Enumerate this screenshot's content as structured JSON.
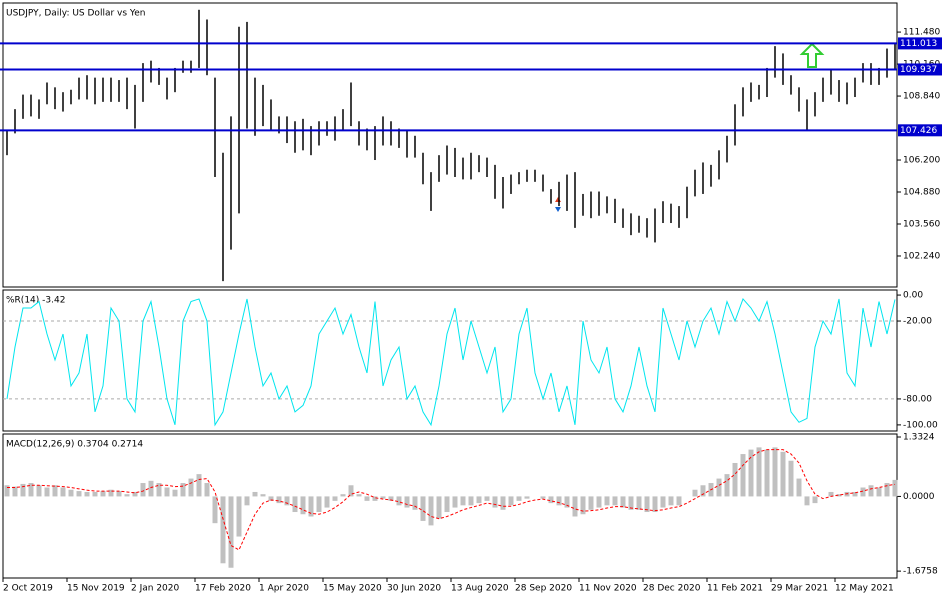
{
  "chart_data": [
    {
      "type": "range_bar",
      "title": "USDJPY, Daily:  US Dollar vs Yen",
      "color": "#000000",
      "high": [
        107.4,
        108.3,
        108.9,
        108.9,
        108.7,
        109.4,
        109.2,
        109.0,
        109.1,
        109.6,
        109.7,
        109.6,
        109.6,
        109.6,
        109.5,
        109.6,
        109.3,
        110.2,
        110.3,
        110.0,
        109.6,
        110.0,
        110.3,
        110.3,
        112.4,
        112.0,
        109.6,
        106.5,
        108.0,
        111.7,
        111.9,
        109.6,
        109.3,
        108.7,
        108.0,
        108.0,
        107.8,
        107.9,
        107.6,
        107.8,
        107.8,
        108.0,
        108.3,
        109.4,
        107.8,
        107.5,
        107.6,
        108.0,
        107.8,
        107.5,
        107.4,
        107.2,
        106.5,
        105.7,
        106.4,
        106.8,
        106.7,
        106.3,
        106.5,
        106.4,
        106.3,
        106.0,
        105.5,
        105.6,
        105.7,
        105.8,
        105.8,
        105.6,
        105.0,
        105.3,
        105.6,
        105.7,
        104.8,
        104.9,
        104.9,
        104.7,
        104.6,
        104.2,
        104.0,
        103.9,
        103.8,
        104.2,
        104.5,
        104.4,
        104.3,
        105.1,
        105.8,
        106.1,
        106.0,
        106.6,
        107.2,
        108.5,
        109.2,
        109.4,
        109.3,
        110.0,
        110.9,
        110.6,
        109.7,
        109.2,
        108.7,
        109.0,
        109.6,
        109.9,
        109.5,
        109.4,
        109.6,
        110.2,
        110.2,
        110.0,
        110.8,
        111.0
      ],
      "low": [
        106.4,
        107.3,
        107.9,
        108.0,
        107.9,
        108.5,
        108.3,
        108.2,
        108.5,
        108.7,
        108.7,
        108.5,
        108.6,
        108.6,
        108.6,
        108.3,
        107.5,
        108.6,
        109.4,
        109.3,
        108.7,
        109.0,
        109.8,
        109.8,
        110.0,
        109.7,
        105.5,
        101.2,
        102.5,
        104.0,
        107.5,
        107.2,
        107.6,
        107.4,
        107.3,
        106.9,
        106.5,
        106.6,
        106.4,
        106.8,
        107.2,
        107.0,
        107.4,
        107.6,
        106.8,
        106.6,
        106.2,
        106.8,
        106.8,
        106.7,
        106.3,
        106.3,
        105.2,
        104.1,
        105.3,
        105.6,
        105.5,
        105.4,
        105.4,
        105.7,
        105.5,
        104.6,
        104.2,
        104.8,
        105.2,
        105.3,
        105.3,
        104.9,
        104.4,
        104.3,
        104.1,
        103.4,
        103.9,
        103.8,
        103.9,
        104.0,
        103.6,
        103.4,
        103.1,
        103.2,
        103.0,
        102.8,
        103.6,
        103.6,
        103.4,
        103.8,
        104.7,
        104.8,
        105.1,
        105.4,
        106.1,
        106.8,
        108.0,
        108.6,
        108.7,
        108.8,
        109.6,
        109.3,
        108.9,
        108.2,
        107.4,
        108.0,
        108.6,
        108.9,
        108.6,
        108.5,
        108.8,
        109.4,
        109.3,
        109.3,
        109.6,
        109.9
      ],
      "ylim": [
        100.96,
        112.68
      ],
      "yticks": [
        {
          "value": 111.48,
          "label": "111.480"
        },
        {
          "value": 110.16,
          "label": "110.160"
        },
        {
          "value": 108.84,
          "label": "108.840"
        },
        {
          "value": 106.2,
          "label": "106.200"
        },
        {
          "value": 104.88,
          "label": "104.880"
        },
        {
          "value": 103.56,
          "label": "103.560"
        },
        {
          "value": 102.24,
          "label": "102.240"
        }
      ],
      "levels": [
        111.013,
        109.937,
        107.426
      ],
      "level_color": "#0000cd"
    },
    {
      "type": "line",
      "title": "%R(14) -3.42",
      "color": "#00e5ee",
      "values": [
        -80,
        -40,
        -10,
        -10,
        -5,
        -30,
        -50,
        -30,
        -70,
        -60,
        -30,
        -90,
        -70,
        -10,
        -20,
        -80,
        -90,
        -20,
        -5,
        -40,
        -80,
        -100,
        -20,
        -5,
        -3,
        -20,
        -100,
        -90,
        -60,
        -30,
        -3,
        -40,
        -70,
        -60,
        -80,
        -70,
        -90,
        -85,
        -70,
        -30,
        -20,
        -10,
        -30,
        -15,
        -40,
        -60,
        -5,
        -70,
        -50,
        -40,
        -80,
        -70,
        -90,
        -100,
        -70,
        -30,
        -10,
        -50,
        -20,
        -40,
        -60,
        -40,
        -90,
        -80,
        -30,
        -10,
        -60,
        -80,
        -60,
        -90,
        -70,
        -100,
        -20,
        -50,
        -60,
        -40,
        -80,
        -90,
        -70,
        -40,
        -70,
        -90,
        -10,
        -30,
        -50,
        -20,
        -40,
        -20,
        -10,
        -30,
        -5,
        -20,
        -3,
        -10,
        -20,
        -5,
        -30,
        -60,
        -90,
        -98,
        -95,
        -40,
        -20,
        -30,
        -3,
        -60,
        -70,
        -10,
        -40,
        -5,
        -30,
        -3.42
      ],
      "ylim": [
        -104.7,
        3.9
      ],
      "yticks": [
        {
          "value": 0,
          "label": "0.00"
        },
        {
          "value": -20,
          "label": "-20.00"
        },
        {
          "value": -80,
          "label": "-80.00"
        },
        {
          "value": -100,
          "label": "-100.00"
        }
      ],
      "levels": [
        -20,
        -80
      ]
    },
    {
      "type": "macd",
      "title": "MACD(12,26,9) 0.3704 0.2714",
      "hist_color": "#c0c0c0",
      "signal_color": "#ff0000",
      "values": [
        0.25,
        0.22,
        0.28,
        0.3,
        0.25,
        0.2,
        0.25,
        0.2,
        0.15,
        0.12,
        0.1,
        0.1,
        0.12,
        0.15,
        0.12,
        0.05,
        0.1,
        0.3,
        0.35,
        0.3,
        0.2,
        0.15,
        0.3,
        0.4,
        0.5,
        0.3,
        -0.6,
        -1.5,
        -1.6,
        -0.9,
        -0.2,
        0.1,
        0.05,
        -0.1,
        -0.15,
        -0.2,
        -0.35,
        -0.4,
        -0.45,
        -0.35,
        -0.25,
        -0.1,
        0.05,
        0.25,
        0.05,
        -0.1,
        -0.1,
        -0.05,
        -0.1,
        -0.2,
        -0.25,
        -0.3,
        -0.55,
        -0.65,
        -0.5,
        -0.35,
        -0.25,
        -0.2,
        -0.2,
        -0.15,
        -0.1,
        -0.25,
        -0.3,
        -0.2,
        -0.1,
        -0.05,
        0.0,
        -0.05,
        -0.15,
        -0.2,
        -0.25,
        -0.45,
        -0.4,
        -0.3,
        -0.25,
        -0.2,
        -0.2,
        -0.25,
        -0.3,
        -0.3,
        -0.35,
        -0.35,
        -0.25,
        -0.2,
        -0.2,
        0.0,
        0.15,
        0.25,
        0.3,
        0.4,
        0.5,
        0.75,
        0.95,
        1.05,
        1.1,
        1.05,
        1.1,
        1.0,
        0.8,
        0.4,
        -0.2,
        -0.15,
        0.0,
        0.1,
        0.05,
        0.1,
        0.1,
        0.2,
        0.25,
        0.2,
        0.3,
        0.3704
      ],
      "signal": [
        0.2,
        0.2,
        0.22,
        0.25,
        0.25,
        0.24,
        0.23,
        0.22,
        0.2,
        0.17,
        0.14,
        0.12,
        0.12,
        0.12,
        0.12,
        0.1,
        0.08,
        0.12,
        0.2,
        0.25,
        0.25,
        0.22,
        0.23,
        0.3,
        0.38,
        0.4,
        0.1,
        -0.5,
        -1.1,
        -1.2,
        -0.8,
        -0.4,
        -0.15,
        -0.08,
        -0.1,
        -0.15,
        -0.22,
        -0.3,
        -0.38,
        -0.4,
        -0.35,
        -0.25,
        -0.12,
        0.05,
        0.1,
        0.05,
        -0.03,
        -0.06,
        -0.08,
        -0.12,
        -0.18,
        -0.22,
        -0.32,
        -0.45,
        -0.5,
        -0.45,
        -0.38,
        -0.3,
        -0.25,
        -0.2,
        -0.15,
        -0.18,
        -0.22,
        -0.22,
        -0.18,
        -0.12,
        -0.08,
        -0.06,
        -0.1,
        -0.14,
        -0.2,
        -0.28,
        -0.33,
        -0.32,
        -0.3,
        -0.26,
        -0.23,
        -0.23,
        -0.26,
        -0.28,
        -0.3,
        -0.32,
        -0.3,
        -0.26,
        -0.23,
        -0.15,
        -0.05,
        0.05,
        0.15,
        0.25,
        0.35,
        0.5,
        0.7,
        0.88,
        1.0,
        1.05,
        1.05,
        1.05,
        0.95,
        0.75,
        0.35,
        0.05,
        -0.05,
        0.0,
        0.03,
        0.06,
        0.08,
        0.12,
        0.17,
        0.2,
        0.24,
        0.2714
      ],
      "ylim": [
        -1.83,
        1.4
      ],
      "yticks": [
        1.3324,
        {
          "value": 0,
          "label": "0.0000"
        },
        -1.6758
      ],
      "xticks": [
        {
          "value": 0,
          "label": "2 Oct 2019"
        },
        {
          "value": 8,
          "label": "15 Nov 2019"
        },
        {
          "value": 16,
          "label": "2 Jan 2020"
        },
        {
          "value": 24,
          "label": "17 Feb 2020"
        },
        {
          "value": 32,
          "label": "1 Apr 2020"
        },
        {
          "value": 40,
          "label": "15 May 2020"
        },
        {
          "value": 48,
          "label": "30 Jun 2020"
        },
        {
          "value": 56,
          "label": "13 Aug 2020"
        },
        {
          "value": 64,
          "label": "28 Sep 2020"
        },
        {
          "value": 72,
          "label": "11 Nov 2020"
        },
        {
          "value": 80,
          "label": "28 Dec 2020"
        },
        {
          "value": 88,
          "label": "11 Feb 2021"
        },
        {
          "value": 96,
          "label": "29 Mar 2021"
        },
        {
          "value": 104,
          "label": "12 May 2021"
        }
      ]
    }
  ]
}
